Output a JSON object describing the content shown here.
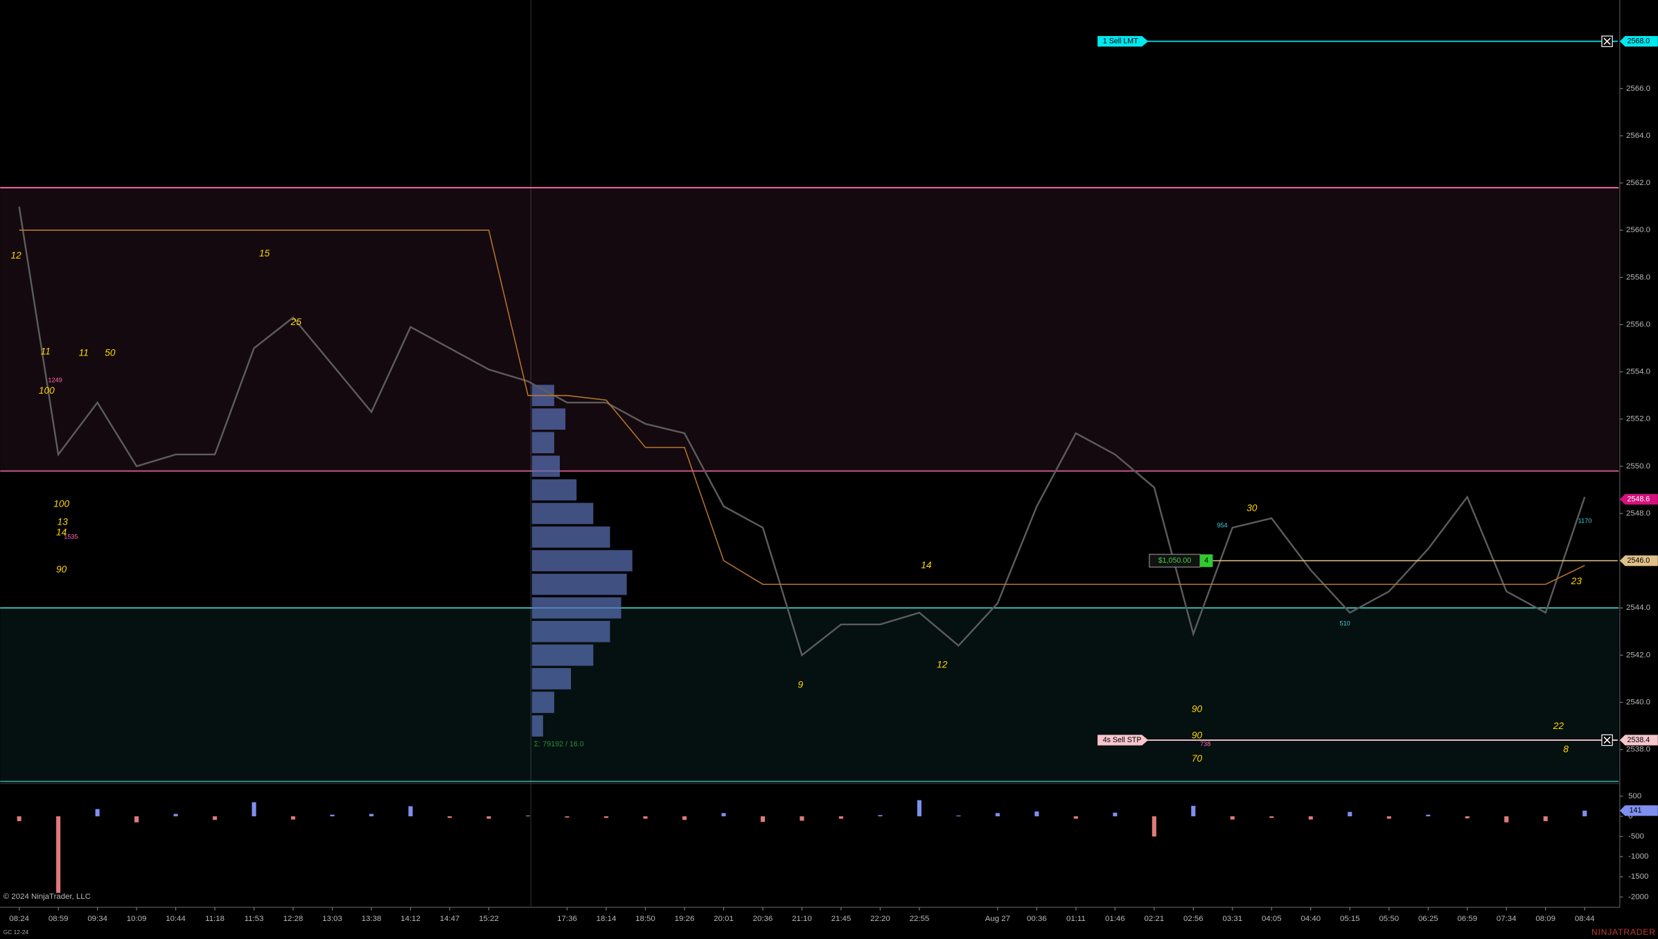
{
  "chart_data": {
    "type": "line",
    "categories": [
      "08:24",
      "08:59",
      "09:34",
      "10:09",
      "10:44",
      "11:18",
      "11:53",
      "12:28",
      "13:03",
      "13:38",
      "14:12",
      "14:47",
      "15:22",
      null,
      "17:36",
      "18:14",
      "18:50",
      "19:26",
      "20:01",
      "20:36",
      "21:10",
      "21:45",
      "22:20",
      "22:55",
      null,
      "Aug 27",
      "00:36",
      "01:11",
      "01:46",
      "02:21",
      "02:56",
      "03:31",
      "04:05",
      "04:40",
      "05:15",
      "05:50",
      "06:25",
      "06:59",
      "07:34",
      "08:09",
      "08:44"
    ],
    "ylim": [
      2536.65,
      2569.75
    ],
    "yticks": [
      {
        "value": 2538,
        "label": "2538.0"
      },
      {
        "value": 2540,
        "label": "2540.0"
      },
      {
        "value": 2542,
        "label": "2542.0"
      },
      {
        "value": 2544,
        "label": "2544.0"
      },
      {
        "value": 2546,
        "label": "2546.0"
      },
      {
        "value": 2548,
        "label": "2548.0"
      },
      {
        "value": 2550,
        "label": "2550.0"
      },
      {
        "value": 2552,
        "label": "2552.0"
      },
      {
        "value": 2554,
        "label": "2554.0"
      },
      {
        "value": 2556,
        "label": "2556.0"
      },
      {
        "value": 2558,
        "label": "2558.0"
      },
      {
        "value": 2560,
        "label": "2560.0"
      },
      {
        "value": 2562,
        "label": "2562.0"
      },
      {
        "value": 2564,
        "label": "2564.0"
      },
      {
        "value": 2566,
        "label": "2566.0"
      },
      {
        "value": 2568,
        "label": "2568.0"
      }
    ],
    "series": [
      {
        "color": "#5c5c5c",
        "values": [
          2561.0,
          2550.5,
          2552.7,
          2550.0,
          2550.5,
          2550.5,
          2555.0,
          2556.3,
          2554.3,
          2552.3,
          2555.9,
          2555.0,
          2554.1,
          2553.6,
          2552.7,
          2552.7,
          2551.8,
          2551.4,
          2548.3,
          2547.4,
          2542.0,
          2543.3,
          2543.3,
          2543.8,
          2542.4,
          2544.2,
          2548.3,
          2551.4,
          2550.5,
          2549.1,
          2542.9,
          2547.4,
          2547.8,
          2545.6,
          2543.8,
          2544.7,
          2546.5,
          2548.7,
          2544.7,
          2543.8,
          2548.7
        ]
      },
      {
        "color": "#b8762a",
        "values": [
          2560.0,
          2560.0,
          2560.0,
          2560.0,
          2560.0,
          2560.0,
          2560.0,
          2560.0,
          2560.0,
          2560.0,
          2560.0,
          2560.0,
          2560.0,
          2553.0,
          2553.0,
          2552.8,
          2550.8,
          2550.8,
          2546.0,
          2545.0,
          2545.0,
          2545.0,
          2545.0,
          2545.0,
          2545.0,
          2545.0,
          2545.0,
          2545.0,
          2545.0,
          2545.0,
          2545.0,
          2545.0,
          2545.0,
          2545.0,
          2545.0,
          2545.0,
          2545.0,
          2545.0,
          2545.0,
          2545.0,
          2545.8
        ]
      }
    ],
    "zones": [
      {
        "from": 2549.8,
        "to": 2561.8,
        "color": "#ff6eb4"
      },
      {
        "from": 2536.65,
        "to": 2544.0,
        "color": "#3fd0c8"
      }
    ],
    "orders": [
      {
        "label": "1  Sell LMT",
        "price": 2568.0,
        "price_label": "2568.0",
        "color": "#00e8f0"
      },
      {
        "label": "4s  Sell STP",
        "price": 2538.4,
        "price_label": "2538.4",
        "color": "#f6c6cc"
      }
    ],
    "position": {
      "price": 2546.0,
      "price_label": "2546.0",
      "pnl": "$1,050.00",
      "quantity": "4",
      "color": "#e0c08a"
    },
    "last_price": {
      "value": 2548.6,
      "label": "2548.6",
      "color": "#d6107e"
    },
    "annotations": [
      {
        "text": "12",
        "color": "#ffd700"
      },
      {
        "text": "15",
        "color": "#ffd700"
      },
      {
        "text": "25",
        "color": "#ffd700"
      },
      {
        "text": "11",
        "color": "#ffd700"
      },
      {
        "text": "11",
        "color": "#ffd700"
      },
      {
        "text": "50",
        "color": "#ffd700"
      },
      {
        "text": "100",
        "color": "#ffd700"
      },
      {
        "text": "100",
        "color": "#ffd700"
      },
      {
        "text": "13",
        "color": "#ffd700"
      },
      {
        "text": "14",
        "color": "#ffd700"
      },
      {
        "text": "90",
        "color": "#ffd700"
      },
      {
        "text": "14",
        "color": "#ffd700"
      },
      {
        "text": "9",
        "color": "#ffd700"
      },
      {
        "text": "12",
        "color": "#ffd700"
      },
      {
        "text": "30",
        "color": "#ffd700"
      },
      {
        "text": "23",
        "color": "#ffd700"
      },
      {
        "text": "22",
        "color": "#ffd700"
      },
      {
        "text": "8",
        "color": "#ffd700"
      },
      {
        "text": "90",
        "color": "#ffd700"
      },
      {
        "text": "90",
        "color": "#ffd700"
      },
      {
        "text": "70",
        "color": "#ffd700"
      },
      {
        "text": "1249",
        "color": "#ff69b4"
      },
      {
        "text": "1535",
        "color": "#ff69b4"
      },
      {
        "text": "738",
        "color": "#ff69b4"
      },
      {
        "text": "954",
        "color": "#3fd0d8"
      },
      {
        "text": "510",
        "color": "#3fd0d8"
      },
      {
        "text": "1170",
        "color": "#3fd0d8"
      }
    ],
    "profile": {
      "levels": [
        2553,
        2552,
        2551,
        2550,
        2549,
        2548,
        2547,
        2546,
        2545,
        2544,
        2543,
        2542,
        2541,
        2540,
        2539
      ],
      "values": [
        20,
        30,
        20,
        25,
        40,
        55,
        70,
        90,
        85,
        80,
        70,
        55,
        35,
        20,
        10
      ],
      "color": "#5a72b8",
      "summary": "Σ: 79192 / 16.0"
    },
    "volume": {
      "ylim": [
        -2230,
        760
      ],
      "yticks": [
        500,
        0,
        -500,
        -1000,
        -1500,
        -2000
      ],
      "values": [
        -120,
        -1900,
        180,
        -150,
        60,
        -90,
        350,
        -80,
        40,
        60,
        250,
        -40,
        -60,
        20,
        -30,
        -40,
        -60,
        -90,
        80,
        -140,
        -110,
        -60,
        30,
        400,
        20,
        80,
        120,
        -60,
        90,
        -500,
        260,
        -80,
        -40,
        -80,
        110,
        -60,
        40,
        -50,
        -150,
        -120,
        141
      ],
      "last": {
        "value": 141,
        "label": "141"
      },
      "up_color": "#7f8ff0",
      "down_color": "#e07a7a"
    }
  },
  "footer": {
    "copyright": "© 2024 NinjaTrader, LLC",
    "instrument": "GC 12-24",
    "brand": "NINJATRADER"
  }
}
